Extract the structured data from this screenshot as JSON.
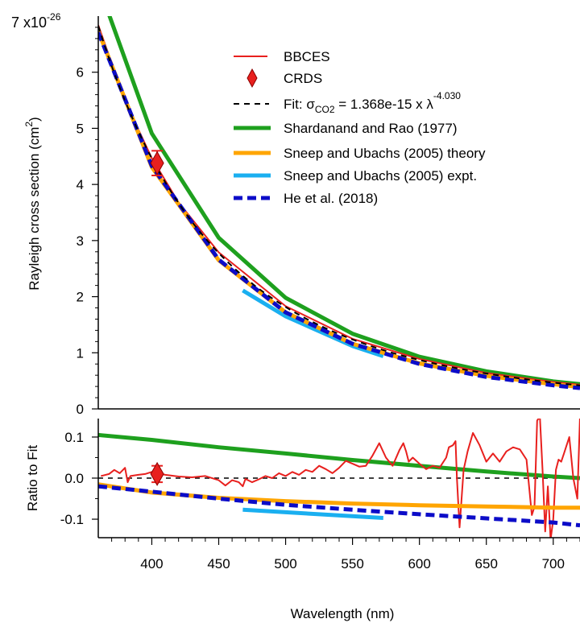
{
  "chart_data": [
    {
      "type": "line",
      "panel": "main",
      "ylabel": "Rayleigh cross section (cm",
      "ylabel_sup": "2",
      "ylabel_close": ")",
      "y_scale_label": "7 x10",
      "y_scale_exp": "-26",
      "xlim": [
        360,
        720
      ],
      "ylim": [
        0,
        7
      ],
      "y_ticks": [
        "0",
        "1",
        "2",
        "3",
        "4",
        "5",
        "6"
      ],
      "legend_position": "top-right",
      "legend": {
        "bbces": "BBCES",
        "crds": "CRDS",
        "fit_prefix": "Fit: σ",
        "fit_sub": "CO2",
        "fit_mid": " = 1.368e-15 x λ",
        "fit_sup": "-4.030",
        "shardanand": "Shardanand and Rao (1977)",
        "sneep_theory": "Sneep and Ubachs (2005) theory",
        "sneep_expt": "Sneep and Ubachs (2005) expt.",
        "he": "He et al. (2018)"
      },
      "fit_model": {
        "coefficient": 1.368e-15,
        "exponent": -4.03
      },
      "series": [
        {
          "name": "BBCES",
          "color": "#e8201e",
          "x": [
            360,
            380,
            400,
            420,
            450,
            500,
            550,
            600,
            650,
            700,
            720
          ],
          "y": [
            6.84,
            5.49,
            4.47,
            3.68,
            2.79,
            1.83,
            1.25,
            0.89,
            0.64,
            0.48,
            0.43
          ]
        },
        {
          "name": "CRDS",
          "color": "#e8201e",
          "x": [
            404
          ],
          "y": [
            4.38
          ],
          "y_err": 0.22
        },
        {
          "name": "Fit",
          "color": "#000000",
          "x": [
            360,
            400,
            450,
            500,
            550,
            600,
            650,
            700,
            720
          ],
          "y": [
            6.84,
            4.47,
            2.78,
            1.82,
            1.24,
            0.87,
            0.63,
            0.47,
            0.42
          ]
        },
        {
          "name": "Shardanand and Rao (1977)",
          "color": "#1ea01e",
          "x": [
            360,
            400,
            450,
            500,
            550,
            600,
            650,
            700,
            720
          ],
          "y": [
            7.56,
            4.91,
            3.05,
            1.98,
            1.34,
            0.93,
            0.67,
            0.49,
            0.44
          ]
        },
        {
          "name": "Sneep and Ubachs (2005) theory",
          "color": "#ffa500",
          "x": [
            360,
            400,
            450,
            500,
            550,
            600,
            650,
            700,
            720
          ],
          "y": [
            6.73,
            4.31,
            2.65,
            1.72,
            1.16,
            0.81,
            0.59,
            0.44,
            0.39
          ]
        },
        {
          "name": "Sneep and Ubachs (2005) expt.",
          "color": "#1aaff0",
          "x": [
            468,
            500,
            550,
            573
          ],
          "y": [
            2.11,
            1.65,
            1.12,
            0.94
          ]
        },
        {
          "name": "He et al. (2018)",
          "color": "#0c0cc8",
          "x": [
            360,
            400,
            450,
            500,
            550,
            600,
            650,
            700,
            720
          ],
          "y": [
            6.71,
            4.33,
            2.66,
            1.72,
            1.16,
            0.8,
            0.57,
            0.42,
            0.37
          ]
        }
      ]
    },
    {
      "type": "line",
      "panel": "ratio",
      "ylabel": "Ratio to Fit",
      "xlabel": "Wavelength (nm)",
      "xlim": [
        360,
        720
      ],
      "ylim": [
        -0.145,
        0.145
      ],
      "x_ticks": [
        "400",
        "450",
        "500",
        "550",
        "600",
        "650",
        "700"
      ],
      "y_ticks": [
        "0.1",
        "0.0",
        "-0.1"
      ],
      "series": [
        {
          "name": "BBCES",
          "x": [
            362,
            368,
            372,
            376,
            380,
            382,
            384,
            390,
            395,
            400,
            405,
            410,
            420,
            430,
            440,
            450,
            455,
            460,
            465,
            468,
            470,
            475,
            480,
            485,
            490,
            495,
            500,
            505,
            510,
            515,
            520,
            525,
            530,
            535,
            540,
            545,
            550,
            555,
            560,
            565,
            570,
            575,
            580,
            585,
            588,
            590,
            592,
            595,
            600,
            605,
            610,
            615,
            620,
            622,
            625,
            627,
            628,
            630,
            633,
            636,
            640,
            645,
            650,
            655,
            660,
            665,
            670,
            675,
            680,
            684,
            686,
            688,
            690,
            692,
            694,
            696,
            698,
            700,
            702,
            704,
            706,
            708,
            710,
            712,
            715,
            718,
            720
          ],
          "y": [
            0.005,
            0.01,
            0.02,
            0.012,
            0.025,
            -0.01,
            0.005,
            0.008,
            0.01,
            0.015,
            0.012,
            0.008,
            0.004,
            0.002,
            0.005,
            -0.005,
            -0.018,
            -0.005,
            -0.01,
            -0.02,
            -0.002,
            -0.01,
            -0.003,
            0.005,
            0.0,
            0.012,
            0.005,
            0.015,
            0.008,
            0.02,
            0.015,
            0.03,
            0.022,
            0.012,
            0.025,
            0.042,
            0.035,
            0.028,
            0.03,
            0.055,
            0.085,
            0.05,
            0.03,
            0.068,
            0.085,
            0.065,
            0.04,
            0.05,
            0.035,
            0.022,
            0.03,
            0.025,
            0.05,
            0.075,
            0.08,
            0.09,
            0.0,
            -0.12,
            0.02,
            0.065,
            0.11,
            0.08,
            0.04,
            0.06,
            0.04,
            0.065,
            0.075,
            0.07,
            0.045,
            -0.09,
            -0.07,
            0.14,
            0.15,
            0.02,
            -0.13,
            -0.02,
            -0.15,
            -0.1,
            0.02,
            0.045,
            0.04,
            0.06,
            0.08,
            0.1,
            0.0,
            -0.05,
            0.15
          ]
        },
        {
          "name": "CRDS",
          "x": [
            404
          ],
          "y": [
            0.01
          ],
          "y_err": 0.02
        },
        {
          "name": "Fit",
          "x": [
            360,
            720
          ],
          "y": [
            0.0,
            0.0
          ]
        },
        {
          "name": "Shardanand and Rao (1977)",
          "x": [
            360,
            400,
            450,
            500,
            550,
            600,
            650,
            700,
            720
          ],
          "y": [
            0.105,
            0.093,
            0.075,
            0.06,
            0.044,
            0.03,
            0.016,
            0.004,
            0.0
          ]
        },
        {
          "name": "Sneep and Ubachs (2005) theory",
          "x": [
            360,
            400,
            450,
            500,
            550,
            600,
            650,
            700,
            720
          ],
          "y": [
            -0.015,
            -0.035,
            -0.048,
            -0.056,
            -0.062,
            -0.066,
            -0.069,
            -0.072,
            -0.072
          ]
        },
        {
          "name": "Sneep and Ubachs (2005) expt.",
          "x": [
            468,
            573
          ],
          "y": [
            -0.077,
            -0.097
          ]
        },
        {
          "name": "He et al. (2018)",
          "x": [
            360,
            400,
            450,
            500,
            550,
            600,
            650,
            700,
            720
          ],
          "y": [
            -0.02,
            -0.033,
            -0.05,
            -0.065,
            -0.077,
            -0.088,
            -0.098,
            -0.108,
            -0.115
          ]
        }
      ]
    }
  ]
}
